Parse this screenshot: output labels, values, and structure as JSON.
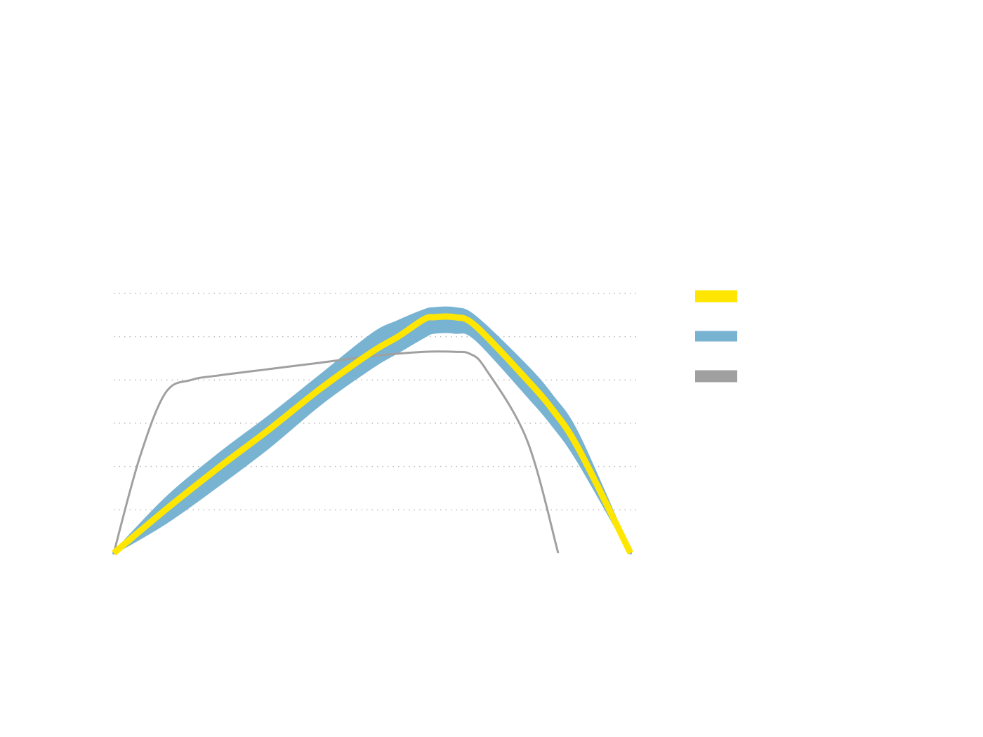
{
  "chart_data": {
    "type": "line",
    "title": "",
    "xlabel": "",
    "ylabel": "",
    "xlim": [
      0,
      100
    ],
    "ylim": [
      0,
      6
    ],
    "grid": "horizontal-dotted",
    "legend_position": "right",
    "colors": {
      "primary_line": "#ffe600",
      "band": "#79b3d2",
      "reference_line": "#a0a0a0",
      "grid": "#bbbbbb"
    },
    "gridlines_y": [
      1,
      2,
      3,
      4,
      5,
      6
    ],
    "series": [
      {
        "legend_swatch": "primary_line",
        "kind": "line",
        "x": [
          0,
          10,
          20,
          30,
          40,
          50,
          55,
          60,
          62,
          66,
          70,
          80,
          85,
          90,
          100
        ],
        "y": [
          0.0,
          1.0,
          1.95,
          2.85,
          3.8,
          4.65,
          5.0,
          5.4,
          5.45,
          5.45,
          5.25,
          4.0,
          3.3,
          2.4,
          0.0
        ]
      },
      {
        "legend_swatch": "band",
        "kind": "band",
        "x": [
          0,
          10,
          20,
          30,
          40,
          50,
          55,
          60,
          62,
          66,
          70,
          80,
          85,
          90,
          100
        ],
        "upper": [
          0.0,
          1.25,
          2.25,
          3.15,
          4.1,
          5.05,
          5.35,
          5.6,
          5.65,
          5.65,
          5.45,
          4.3,
          3.6,
          2.7,
          0.0
        ],
        "lower": [
          0.0,
          0.7,
          1.55,
          2.45,
          3.45,
          4.3,
          4.65,
          5.0,
          5.1,
          5.1,
          4.95,
          3.65,
          2.95,
          2.1,
          0.0
        ]
      },
      {
        "legend_swatch": "reference_line",
        "kind": "line",
        "x": [
          0,
          5,
          10,
          15,
          20,
          30,
          40,
          50,
          60,
          66,
          69,
          72,
          80,
          86
        ],
        "y": [
          0.0,
          2.2,
          3.7,
          4.0,
          4.1,
          4.25,
          4.4,
          4.55,
          4.65,
          4.65,
          4.6,
          4.25,
          2.6,
          0.0
        ]
      }
    ],
    "legend": [
      {
        "swatch": "primary_line"
      },
      {
        "swatch": "band"
      },
      {
        "swatch": "reference_line"
      }
    ]
  }
}
